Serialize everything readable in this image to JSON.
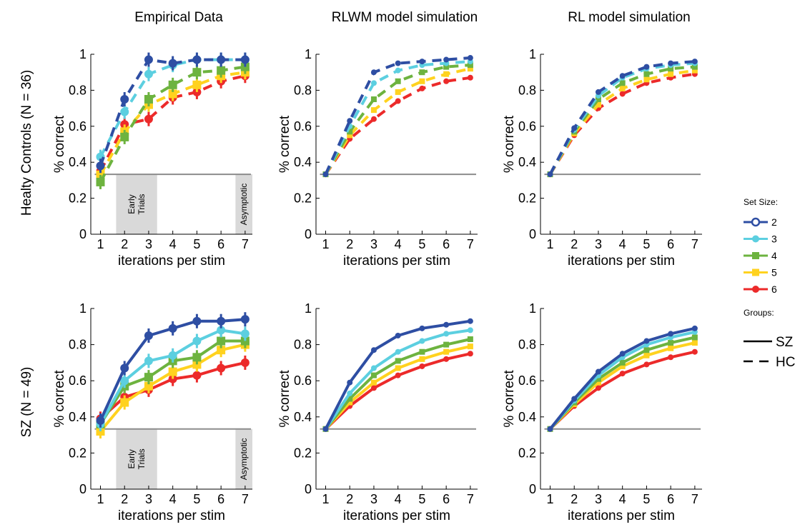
{
  "column_titles": [
    "Empirical Data",
    "RLWM model simulation",
    "RL model simulation"
  ],
  "row_labels": [
    "Healty Controls (N = 36)",
    "SZ (N = 49)"
  ],
  "legend": {
    "set_size_title": "Set Size:",
    "set_sizes": [
      {
        "label": "2",
        "color": "#2e4ea3",
        "marker": "circle-open"
      },
      {
        "label": "3",
        "color": "#5ccfe0",
        "marker": "circle"
      },
      {
        "label": "4",
        "color": "#6db33f",
        "marker": "square"
      },
      {
        "label": "5",
        "color": "#ffd21f",
        "marker": "square"
      },
      {
        "label": "6",
        "color": "#ec2a2a",
        "marker": "circle"
      }
    ],
    "groups_title": "Groups:",
    "groups": [
      {
        "label": "SZ",
        "style": "solid"
      },
      {
        "label": "HC",
        "style": "dashed"
      }
    ]
  },
  "chart_data": [
    {
      "type": "line",
      "panel": "HC empirical",
      "title": "Empirical Data",
      "xlabel": "iterations per stim",
      "ylabel": "% correct",
      "x": [
        1,
        2,
        3,
        4,
        5,
        6,
        7
      ],
      "ylim": [
        0,
        1
      ],
      "xlim": [
        0.6,
        7.3
      ],
      "yticks": [
        "0",
        "0.2",
        "0.4",
        "0.6",
        "0.8",
        "1"
      ],
      "line_style": "dashed",
      "error_bars": true,
      "chance_level": 0.333,
      "shaded_regions": [
        {
          "label": "Early\nTrials",
          "from": 1.65,
          "to": 3.35
        },
        {
          "label": "Asymptotic",
          "from": 6.6,
          "to": 7.3
        }
      ],
      "series": [
        {
          "name": "2",
          "values": [
            0.38,
            0.75,
            0.97,
            0.95,
            0.97,
            0.97,
            0.97
          ]
        },
        {
          "name": "3",
          "values": [
            0.43,
            0.68,
            0.89,
            0.94,
            0.97,
            0.97,
            0.97
          ]
        },
        {
          "name": "4",
          "values": [
            0.29,
            0.54,
            0.75,
            0.83,
            0.9,
            0.91,
            0.93
          ]
        },
        {
          "name": "5",
          "values": [
            0.33,
            0.57,
            0.72,
            0.78,
            0.83,
            0.88,
            0.9
          ]
        },
        {
          "name": "6",
          "values": [
            0.35,
            0.61,
            0.64,
            0.76,
            0.79,
            0.85,
            0.88
          ]
        }
      ]
    },
    {
      "type": "line",
      "panel": "HC RLWM",
      "title": "RLWM model simulation",
      "xlabel": "iterations per stim",
      "ylabel": "% correct",
      "x": [
        1,
        2,
        3,
        4,
        5,
        6,
        7
      ],
      "ylim": [
        0,
        1
      ],
      "xlim": [
        0.6,
        7.3
      ],
      "yticks": [
        "0",
        "0.2",
        "0.4",
        "0.6",
        "0.8",
        "1"
      ],
      "line_style": "dashed",
      "error_bars": false,
      "chance_level": 0.333,
      "series": [
        {
          "name": "2",
          "values": [
            0.333,
            0.63,
            0.9,
            0.95,
            0.96,
            0.97,
            0.98
          ]
        },
        {
          "name": "3",
          "values": [
            0.333,
            0.6,
            0.84,
            0.91,
            0.94,
            0.95,
            0.96
          ]
        },
        {
          "name": "4",
          "values": [
            0.333,
            0.57,
            0.75,
            0.85,
            0.9,
            0.93,
            0.94
          ]
        },
        {
          "name": "5",
          "values": [
            0.333,
            0.55,
            0.69,
            0.79,
            0.85,
            0.89,
            0.92
          ]
        },
        {
          "name": "6",
          "values": [
            0.333,
            0.53,
            0.64,
            0.74,
            0.81,
            0.85,
            0.87
          ]
        }
      ]
    },
    {
      "type": "line",
      "panel": "HC RL",
      "title": "RL model simulation",
      "xlabel": "iterations per stim",
      "ylabel": "% correct",
      "x": [
        1,
        2,
        3,
        4,
        5,
        6,
        7
      ],
      "ylim": [
        0,
        1
      ],
      "xlim": [
        0.6,
        7.3
      ],
      "yticks": [
        "0",
        "0.2",
        "0.4",
        "0.6",
        "0.8",
        "1"
      ],
      "line_style": "dashed",
      "error_bars": false,
      "chance_level": 0.333,
      "series": [
        {
          "name": "2",
          "values": [
            0.333,
            0.59,
            0.79,
            0.88,
            0.93,
            0.95,
            0.96
          ]
        },
        {
          "name": "3",
          "values": [
            0.333,
            0.58,
            0.77,
            0.87,
            0.92,
            0.94,
            0.95
          ]
        },
        {
          "name": "4",
          "values": [
            0.333,
            0.57,
            0.75,
            0.84,
            0.89,
            0.92,
            0.93
          ]
        },
        {
          "name": "5",
          "values": [
            0.333,
            0.56,
            0.72,
            0.81,
            0.86,
            0.89,
            0.91
          ]
        },
        {
          "name": "6",
          "values": [
            0.333,
            0.55,
            0.7,
            0.78,
            0.84,
            0.87,
            0.89
          ]
        }
      ]
    },
    {
      "type": "line",
      "panel": "SZ empirical",
      "xlabel": "iterations per stim",
      "ylabel": "% correct",
      "x": [
        1,
        2,
        3,
        4,
        5,
        6,
        7
      ],
      "ylim": [
        0,
        1
      ],
      "xlim": [
        0.6,
        7.3
      ],
      "yticks": [
        "0",
        "0.2",
        "0.4",
        "0.6",
        "0.8",
        "1"
      ],
      "line_style": "solid",
      "error_bars": true,
      "chance_level": 0.333,
      "shaded_regions": [
        {
          "label": "Early\nTrials",
          "from": 1.65,
          "to": 3.35
        },
        {
          "label": "Asymptotic",
          "from": 6.6,
          "to": 7.3
        }
      ],
      "series": [
        {
          "name": "2",
          "values": [
            0.38,
            0.67,
            0.85,
            0.89,
            0.93,
            0.93,
            0.94
          ]
        },
        {
          "name": "3",
          "values": [
            0.36,
            0.6,
            0.71,
            0.74,
            0.82,
            0.88,
            0.86
          ]
        },
        {
          "name": "4",
          "values": [
            0.36,
            0.57,
            0.62,
            0.71,
            0.73,
            0.82,
            0.82
          ]
        },
        {
          "name": "5",
          "values": [
            0.32,
            0.48,
            0.57,
            0.65,
            0.69,
            0.77,
            0.8
          ]
        },
        {
          "name": "6",
          "values": [
            0.39,
            0.51,
            0.55,
            0.61,
            0.63,
            0.67,
            0.7
          ]
        }
      ]
    },
    {
      "type": "line",
      "panel": "SZ RLWM",
      "xlabel": "iterations per stim",
      "ylabel": "% correct",
      "x": [
        1,
        2,
        3,
        4,
        5,
        6,
        7
      ],
      "ylim": [
        0,
        1
      ],
      "xlim": [
        0.6,
        7.3
      ],
      "yticks": [
        "0",
        "0.2",
        "0.4",
        "0.6",
        "0.8",
        "1"
      ],
      "line_style": "solid",
      "error_bars": false,
      "chance_level": 0.333,
      "series": [
        {
          "name": "2",
          "values": [
            0.333,
            0.59,
            0.77,
            0.85,
            0.89,
            0.91,
            0.93
          ]
        },
        {
          "name": "3",
          "values": [
            0.333,
            0.53,
            0.67,
            0.76,
            0.82,
            0.86,
            0.88
          ]
        },
        {
          "name": "4",
          "values": [
            0.333,
            0.5,
            0.63,
            0.71,
            0.76,
            0.8,
            0.83
          ]
        },
        {
          "name": "5",
          "values": [
            0.333,
            0.48,
            0.59,
            0.67,
            0.72,
            0.76,
            0.79
          ]
        },
        {
          "name": "6",
          "values": [
            0.333,
            0.46,
            0.56,
            0.63,
            0.68,
            0.72,
            0.75
          ]
        }
      ]
    },
    {
      "type": "line",
      "panel": "SZ RL",
      "xlabel": "iterations per stim",
      "ylabel": "% correct",
      "x": [
        1,
        2,
        3,
        4,
        5,
        6,
        7
      ],
      "ylim": [
        0,
        1
      ],
      "xlim": [
        0.6,
        7.3
      ],
      "yticks": [
        "0",
        "0.2",
        "0.4",
        "0.6",
        "0.8",
        "1"
      ],
      "line_style": "solid",
      "error_bars": false,
      "chance_level": 0.333,
      "series": [
        {
          "name": "2",
          "values": [
            0.333,
            0.5,
            0.65,
            0.75,
            0.82,
            0.86,
            0.89
          ]
        },
        {
          "name": "3",
          "values": [
            0.333,
            0.49,
            0.63,
            0.73,
            0.8,
            0.84,
            0.87
          ]
        },
        {
          "name": "4",
          "values": [
            0.333,
            0.48,
            0.61,
            0.7,
            0.77,
            0.81,
            0.84
          ]
        },
        {
          "name": "5",
          "values": [
            0.333,
            0.47,
            0.59,
            0.68,
            0.74,
            0.78,
            0.81
          ]
        },
        {
          "name": "6",
          "values": [
            0.333,
            0.46,
            0.56,
            0.64,
            0.69,
            0.73,
            0.76
          ]
        }
      ]
    }
  ]
}
